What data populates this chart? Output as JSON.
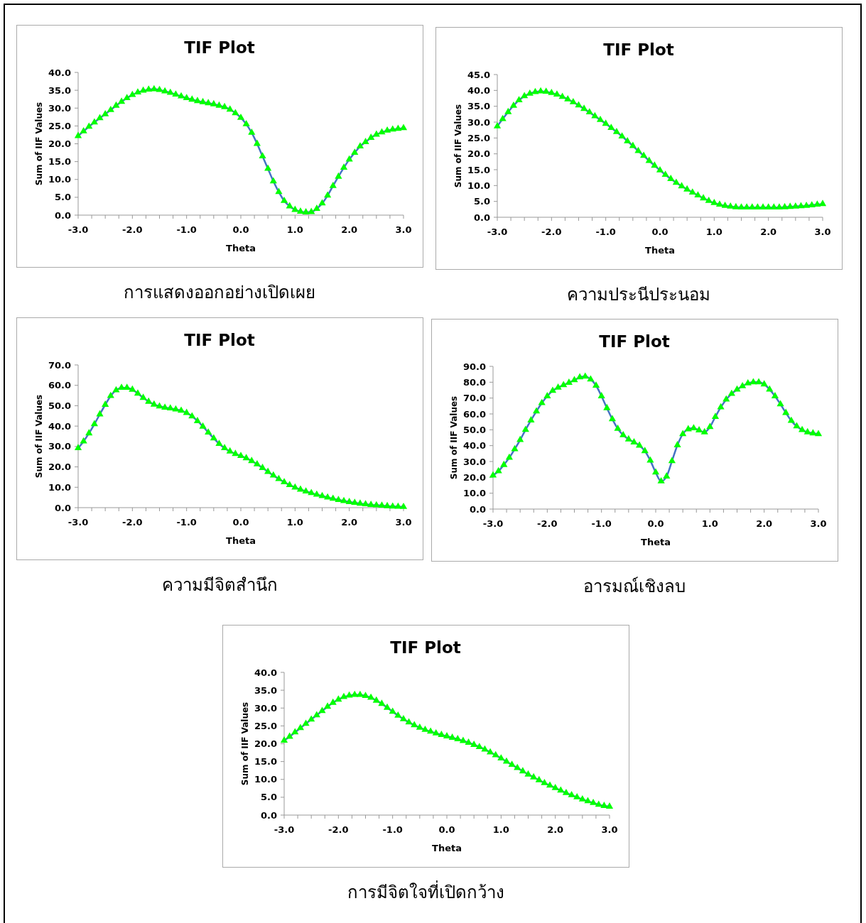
{
  "chart_data": [
    {
      "type": "line",
      "title": "TIF Plot",
      "xlabel": "Theta",
      "ylabel": "Sum of IIF Values",
      "annotations": [
        "การแสดงออกอย่างเปิดเผย"
      ],
      "xlim": [
        -3,
        3
      ],
      "ylim": [
        0,
        40
      ],
      "xticks": [
        {
          "value": -3,
          "label": "-3.0"
        },
        {
          "value": -2.75,
          "label": null
        },
        {
          "value": -2.5,
          "label": null
        },
        {
          "value": -2.25,
          "label": null
        },
        {
          "value": -2,
          "label": "-2.0"
        },
        {
          "value": -1.75,
          "label": null
        },
        {
          "value": -1.5,
          "label": null
        },
        {
          "value": -1.25,
          "label": null
        },
        {
          "value": -1,
          "label": "-1.0"
        },
        {
          "value": -0.75,
          "label": null
        },
        {
          "value": -0.5,
          "label": null
        },
        {
          "value": -0.25,
          "label": null
        },
        {
          "value": 0,
          "label": "0.0"
        },
        {
          "value": 0.25,
          "label": null
        },
        {
          "value": 0.5,
          "label": null
        },
        {
          "value": 0.75,
          "label": null
        },
        {
          "value": 1,
          "label": "1.0"
        },
        {
          "value": 1.25,
          "label": null
        },
        {
          "value": 1.5,
          "label": null
        },
        {
          "value": 1.75,
          "label": null
        },
        {
          "value": 2,
          "label": "2.0"
        },
        {
          "value": 2.25,
          "label": null
        },
        {
          "value": 2.5,
          "label": null
        },
        {
          "value": 2.75,
          "label": null
        },
        {
          "value": 3,
          "label": "3.0"
        }
      ],
      "yticks": [
        {
          "value": 0,
          "label": "0.0"
        },
        {
          "value": 5,
          "label": "5.0"
        },
        {
          "value": 10,
          "label": "10.0"
        },
        {
          "value": 15,
          "label": "15.0"
        },
        {
          "value": 20,
          "label": "20.0"
        },
        {
          "value": 25,
          "label": "25.0"
        },
        {
          "value": 30,
          "label": "30.0"
        },
        {
          "value": 35,
          "label": "35.0"
        },
        {
          "value": 40,
          "label": "40.0"
        }
      ],
      "x": [
        -3.0,
        -2.9,
        -2.8,
        -2.7,
        -2.6,
        -2.5,
        -2.4,
        -2.3,
        -2.2,
        -2.1,
        -2.0,
        -1.9,
        -1.8,
        -1.7,
        -1.6,
        -1.5,
        -1.4,
        -1.3,
        -1.2,
        -1.1,
        -1.0,
        -0.9,
        -0.8,
        -0.7,
        -0.6,
        -0.5,
        -0.4,
        -0.3,
        -0.2,
        -0.1,
        0.0,
        0.1,
        0.2,
        0.3,
        0.4,
        0.5,
        0.6,
        0.7,
        0.8,
        0.9,
        1.0,
        1.1,
        1.2,
        1.3,
        1.4,
        1.5,
        1.6,
        1.7,
        1.8,
        1.9,
        2.0,
        2.1,
        2.2,
        2.3,
        2.4,
        2.5,
        2.6,
        2.7,
        2.8,
        2.9,
        3.0
      ],
      "series": [
        {
          "type": "line",
          "color": "#4472c4",
          "marker": "none",
          "values": [
            22.2,
            23.5,
            24.8,
            26,
            27.2,
            28.3,
            29.5,
            30.7,
            31.8,
            32.8,
            33.7,
            34.4,
            34.9,
            35.2,
            35.3,
            35.1,
            34.7,
            34.3,
            33.8,
            33.3,
            32.8,
            32.4,
            32,
            31.7,
            31.4,
            31.1,
            30.7,
            30.3,
            29.6,
            28.6,
            27.3,
            25.5,
            23.1,
            20,
            16.5,
            13,
            9.5,
            6.5,
            4,
            2.5,
            1.5,
            1,
            0.8,
            0.9,
            1.8,
            3.3,
            5.5,
            8.2,
            10.8,
            13.3,
            15.6,
            17.5,
            19.3,
            20.5,
            21.7,
            22.6,
            23.2,
            23.7,
            24,
            24.2,
            24.4
          ]
        },
        {
          "type": "scatter",
          "color": "#00ff00",
          "marker": "triangle",
          "values": [
            22.2,
            23.5,
            24.8,
            26,
            27.2,
            28.3,
            29.5,
            30.7,
            31.8,
            32.8,
            33.7,
            34.4,
            34.9,
            35.2,
            35.3,
            35.1,
            34.7,
            34.3,
            33.8,
            33.3,
            32.8,
            32.4,
            32,
            31.7,
            31.4,
            31.1,
            30.7,
            30.3,
            29.6,
            28.6,
            27.3,
            25.5,
            23.1,
            20,
            16.5,
            13,
            9.5,
            6.5,
            4,
            2.5,
            1.5,
            1,
            0.8,
            0.9,
            1.8,
            3.3,
            5.5,
            8.2,
            10.8,
            13.3,
            15.6,
            17.5,
            19.3,
            20.5,
            21.7,
            22.6,
            23.2,
            23.7,
            24,
            24.2,
            24.4
          ]
        }
      ]
    },
    {
      "type": "line",
      "title": "TIF Plot",
      "xlabel": "Theta",
      "ylabel": "Sum of IIF Values",
      "annotations": [
        "ความประนีประนอม"
      ],
      "xlim": [
        -3,
        3
      ],
      "ylim": [
        0,
        45
      ],
      "xticks": [
        {
          "value": -3,
          "label": "-3.0"
        },
        {
          "value": -2.75,
          "label": null
        },
        {
          "value": -2.5,
          "label": null
        },
        {
          "value": -2.25,
          "label": null
        },
        {
          "value": -2,
          "label": "-2.0"
        },
        {
          "value": -1.75,
          "label": null
        },
        {
          "value": -1.5,
          "label": null
        },
        {
          "value": -1.25,
          "label": null
        },
        {
          "value": -1,
          "label": "-1.0"
        },
        {
          "value": -0.75,
          "label": null
        },
        {
          "value": -0.5,
          "label": null
        },
        {
          "value": -0.25,
          "label": null
        },
        {
          "value": 0,
          "label": "0.0"
        },
        {
          "value": 0.25,
          "label": null
        },
        {
          "value": 0.5,
          "label": null
        },
        {
          "value": 0.75,
          "label": null
        },
        {
          "value": 1,
          "label": "1.0"
        },
        {
          "value": 1.25,
          "label": null
        },
        {
          "value": 1.5,
          "label": null
        },
        {
          "value": 1.75,
          "label": null
        },
        {
          "value": 2,
          "label": "2.0"
        },
        {
          "value": 2.25,
          "label": null
        },
        {
          "value": 2.5,
          "label": null
        },
        {
          "value": 2.75,
          "label": null
        },
        {
          "value": 3,
          "label": "3.0"
        }
      ],
      "yticks": [
        {
          "value": 0,
          "label": "0.0"
        },
        {
          "value": 5,
          "label": "5.0"
        },
        {
          "value": 10,
          "label": "10.0"
        },
        {
          "value": 15,
          "label": "15.0"
        },
        {
          "value": 20,
          "label": "20.0"
        },
        {
          "value": 25,
          "label": "25.0"
        },
        {
          "value": 30,
          "label": "30.0"
        },
        {
          "value": 35,
          "label": "35.0"
        },
        {
          "value": 40,
          "label": "40.0"
        },
        {
          "value": 45,
          "label": "45.0"
        }
      ],
      "x": [
        -3.0,
        -2.9,
        -2.8,
        -2.7,
        -2.6,
        -2.5,
        -2.4,
        -2.3,
        -2.2,
        -2.1,
        -2.0,
        -1.9,
        -1.8,
        -1.7,
        -1.6,
        -1.5,
        -1.4,
        -1.3,
        -1.2,
        -1.1,
        -1.0,
        -0.9,
        -0.8,
        -0.7,
        -0.6,
        -0.5,
        -0.4,
        -0.3,
        -0.2,
        -0.1,
        0.0,
        0.1,
        0.2,
        0.3,
        0.4,
        0.5,
        0.6,
        0.7,
        0.8,
        0.9,
        1.0,
        1.1,
        1.2,
        1.3,
        1.4,
        1.5,
        1.6,
        1.7,
        1.8,
        1.9,
        2.0,
        2.1,
        2.2,
        2.3,
        2.4,
        2.5,
        2.6,
        2.7,
        2.8,
        2.9,
        3.0
      ],
      "series": [
        {
          "type": "line",
          "color": "#4472c4",
          "marker": "none",
          "values": [
            28.7,
            31,
            33.2,
            35.2,
            36.9,
            38.2,
            39,
            39.5,
            39.7,
            39.6,
            39.2,
            38.7,
            38,
            37.2,
            36.3,
            35.3,
            34.2,
            33.1,
            31.9,
            30.7,
            29.5,
            28.2,
            26.9,
            25.5,
            24,
            22.5,
            20.9,
            19.4,
            17.8,
            16.3,
            14.8,
            13.4,
            12.1,
            10.9,
            9.8,
            8.8,
            7.8,
            6.9,
            6,
            5.2,
            4.5,
            4,
            3.6,
            3.4,
            3.2,
            3.1,
            3.1,
            3.1,
            3.1,
            3.1,
            3.1,
            3.1,
            3.1,
            3.2,
            3.3,
            3.4,
            3.5,
            3.6,
            3.8,
            4,
            4.2
          ]
        },
        {
          "type": "scatter",
          "color": "#00ff00",
          "marker": "triangle",
          "values": [
            28.7,
            31,
            33.2,
            35.2,
            36.9,
            38.2,
            39,
            39.5,
            39.7,
            39.6,
            39.2,
            38.7,
            38,
            37.2,
            36.3,
            35.3,
            34.2,
            33.1,
            31.9,
            30.7,
            29.5,
            28.2,
            26.9,
            25.5,
            24,
            22.5,
            20.9,
            19.4,
            17.8,
            16.3,
            14.8,
            13.4,
            12.1,
            10.9,
            9.8,
            8.8,
            7.8,
            6.9,
            6,
            5.2,
            4.5,
            4,
            3.6,
            3.4,
            3.2,
            3.1,
            3.1,
            3.1,
            3.1,
            3.1,
            3.1,
            3.1,
            3.1,
            3.2,
            3.3,
            3.4,
            3.5,
            3.6,
            3.8,
            4,
            4.2
          ]
        }
      ]
    },
    {
      "type": "line",
      "title": "TIF Plot",
      "xlabel": "Theta",
      "ylabel": "Sum of IIF Values",
      "annotations": [
        "ความมีจิตสำนึก"
      ],
      "xlim": [
        -3,
        3
      ],
      "ylim": [
        0,
        70
      ],
      "xticks": [
        {
          "value": -3,
          "label": "-3.0"
        },
        {
          "value": -2.75,
          "label": null
        },
        {
          "value": -2.5,
          "label": null
        },
        {
          "value": -2.25,
          "label": null
        },
        {
          "value": -2,
          "label": "-2.0"
        },
        {
          "value": -1.75,
          "label": null
        },
        {
          "value": -1.5,
          "label": null
        },
        {
          "value": -1.25,
          "label": null
        },
        {
          "value": -1,
          "label": "-1.0"
        },
        {
          "value": -0.75,
          "label": null
        },
        {
          "value": -0.5,
          "label": null
        },
        {
          "value": -0.25,
          "label": null
        },
        {
          "value": 0,
          "label": "0.0"
        },
        {
          "value": 0.25,
          "label": null
        },
        {
          "value": 0.5,
          "label": null
        },
        {
          "value": 0.75,
          "label": null
        },
        {
          "value": 1,
          "label": "1.0"
        },
        {
          "value": 1.25,
          "label": null
        },
        {
          "value": 1.5,
          "label": null
        },
        {
          "value": 1.75,
          "label": null
        },
        {
          "value": 2,
          "label": "2.0"
        },
        {
          "value": 2.25,
          "label": null
        },
        {
          "value": 2.5,
          "label": null
        },
        {
          "value": 2.75,
          "label": null
        },
        {
          "value": 3,
          "label": "3.0"
        }
      ],
      "yticks": [
        {
          "value": 0,
          "label": "0.0"
        },
        {
          "value": 10,
          "label": "10.0"
        },
        {
          "value": 20,
          "label": "20.0"
        },
        {
          "value": 30,
          "label": "30.0"
        },
        {
          "value": 40,
          "label": "40.0"
        },
        {
          "value": 50,
          "label": "50.0"
        },
        {
          "value": 60,
          "label": "60.0"
        },
        {
          "value": 70,
          "label": "70.0"
        }
      ],
      "x": [
        -3.0,
        -2.9,
        -2.8,
        -2.7,
        -2.6,
        -2.5,
        -2.4,
        -2.3,
        -2.2,
        -2.1,
        -2.0,
        -1.9,
        -1.8,
        -1.7,
        -1.6,
        -1.5,
        -1.4,
        -1.3,
        -1.2,
        -1.1,
        -1.0,
        -0.9,
        -0.8,
        -0.7,
        -0.6,
        -0.5,
        -0.4,
        -0.3,
        -0.2,
        -0.1,
        0.0,
        0.1,
        0.2,
        0.3,
        0.4,
        0.5,
        0.6,
        0.7,
        0.8,
        0.9,
        1.0,
        1.1,
        1.2,
        1.3,
        1.4,
        1.5,
        1.6,
        1.7,
        1.8,
        1.9,
        2.0,
        2.1,
        2.2,
        2.3,
        2.4,
        2.5,
        2.6,
        2.7,
        2.8,
        2.9,
        3.0
      ],
      "series": [
        {
          "type": "line",
          "color": "#4472c4",
          "marker": "none",
          "values": [
            29.2,
            32.5,
            36.5,
            41,
            45.8,
            50.5,
            54.8,
            57.6,
            58.8,
            58.8,
            57.9,
            56,
            53.9,
            52,
            50.6,
            49.7,
            49.1,
            48.7,
            48.2,
            47.6,
            46.5,
            44.8,
            42.5,
            39.8,
            36.9,
            34,
            31.3,
            29.2,
            27.6,
            26.4,
            25.4,
            24.3,
            22.9,
            21.3,
            19.5,
            17.6,
            15.8,
            14.1,
            12.5,
            11.1,
            9.9,
            8.9,
            8,
            7.2,
            6.4,
            5.7,
            5,
            4.4,
            3.8,
            3.3,
            2.8,
            2.4,
            2,
            1.7,
            1.4,
            1.2,
            1,
            0.8,
            0.6,
            0.5,
            0.4
          ]
        },
        {
          "type": "scatter",
          "color": "#00ff00",
          "marker": "triangle",
          "values": [
            29.2,
            32.5,
            36.5,
            41,
            45.8,
            50.5,
            54.8,
            57.6,
            58.8,
            58.8,
            57.9,
            56,
            53.9,
            52,
            50.6,
            49.7,
            49.1,
            48.7,
            48.2,
            47.6,
            46.5,
            44.8,
            42.5,
            39.8,
            36.9,
            34,
            31.3,
            29.2,
            27.6,
            26.4,
            25.4,
            24.3,
            22.9,
            21.3,
            19.5,
            17.6,
            15.8,
            14.1,
            12.5,
            11.1,
            9.9,
            8.9,
            8,
            7.2,
            6.4,
            5.7,
            5,
            4.4,
            3.8,
            3.3,
            2.8,
            2.4,
            2,
            1.7,
            1.4,
            1.2,
            1,
            0.8,
            0.6,
            0.5,
            0.4
          ]
        }
      ]
    },
    {
      "type": "line",
      "title": "TIF Plot",
      "xlabel": "Theta",
      "ylabel": "Sum of IIF Values",
      "annotations": [
        "อารมณ์เชิงลบ"
      ],
      "xlim": [
        -3,
        3
      ],
      "ylim": [
        0,
        90
      ],
      "xticks": [
        {
          "value": -3,
          "label": "-3.0"
        },
        {
          "value": -2.75,
          "label": null
        },
        {
          "value": -2.5,
          "label": null
        },
        {
          "value": -2.25,
          "label": null
        },
        {
          "value": -2,
          "label": "-2.0"
        },
        {
          "value": -1.75,
          "label": null
        },
        {
          "value": -1.5,
          "label": null
        },
        {
          "value": -1.25,
          "label": null
        },
        {
          "value": -1,
          "label": "-1.0"
        },
        {
          "value": -0.75,
          "label": null
        },
        {
          "value": -0.5,
          "label": null
        },
        {
          "value": -0.25,
          "label": null
        },
        {
          "value": 0,
          "label": "0.0"
        },
        {
          "value": 0.25,
          "label": null
        },
        {
          "value": 0.5,
          "label": null
        },
        {
          "value": 0.75,
          "label": null
        },
        {
          "value": 1,
          "label": "1.0"
        },
        {
          "value": 1.25,
          "label": null
        },
        {
          "value": 1.5,
          "label": null
        },
        {
          "value": 1.75,
          "label": null
        },
        {
          "value": 2,
          "label": "2.0"
        },
        {
          "value": 2.25,
          "label": null
        },
        {
          "value": 2.5,
          "label": null
        },
        {
          "value": 2.75,
          "label": null
        },
        {
          "value": 3,
          "label": "3.0"
        }
      ],
      "yticks": [
        {
          "value": 0,
          "label": "0.0"
        },
        {
          "value": 10,
          "label": "10.0"
        },
        {
          "value": 20,
          "label": "20.0"
        },
        {
          "value": 30,
          "label": "30.0"
        },
        {
          "value": 40,
          "label": "40.0"
        },
        {
          "value": 50,
          "label": "50.0"
        },
        {
          "value": 60,
          "label": "60.0"
        },
        {
          "value": 70,
          "label": "70.0"
        },
        {
          "value": 80,
          "label": "80.0"
        },
        {
          "value": 90,
          "label": "90.0"
        }
      ],
      "x": [
        -3.0,
        -2.9,
        -2.8,
        -2.7,
        -2.6,
        -2.5,
        -2.4,
        -2.3,
        -2.2,
        -2.1,
        -2.0,
        -1.9,
        -1.8,
        -1.7,
        -1.6,
        -1.5,
        -1.4,
        -1.3,
        -1.2,
        -1.1,
        -1.0,
        -0.9,
        -0.8,
        -0.7,
        -0.6,
        -0.5,
        -0.4,
        -0.3,
        -0.2,
        -0.1,
        0.0,
        0.1,
        0.2,
        0.3,
        0.4,
        0.5,
        0.6,
        0.7,
        0.8,
        0.9,
        1.0,
        1.1,
        1.2,
        1.3,
        1.4,
        1.5,
        1.6,
        1.7,
        1.8,
        1.9,
        2.0,
        2.1,
        2.2,
        2.3,
        2.4,
        2.5,
        2.6,
        2.7,
        2.8,
        2.9,
        3.0
      ],
      "series": [
        {
          "type": "line",
          "color": "#4472c4",
          "marker": "none",
          "values": [
            21.2,
            23.9,
            27.9,
            32.4,
            37.8,
            43.6,
            50,
            56,
            61.6,
            66.9,
            71.2,
            74.6,
            76.6,
            78.2,
            79.7,
            81.3,
            83.1,
            83.6,
            81.8,
            77.9,
            71.2,
            63.7,
            56.7,
            50.7,
            46.6,
            44,
            42.1,
            40.1,
            36.6,
            30.6,
            23.1,
            17.5,
            20.6,
            30.3,
            40.3,
            47.3,
            50.4,
            51,
            49.7,
            48.5,
            51.8,
            58.2,
            64.2,
            69.1,
            72.7,
            75.4,
            77.5,
            79.3,
            80,
            80,
            78.7,
            75.4,
            71.2,
            66.1,
            60.7,
            55.7,
            52.2,
            49.9,
            48.5,
            47.8,
            47.3
          ]
        },
        {
          "type": "scatter",
          "color": "#00ff00",
          "marker": "triangle",
          "values": [
            21.2,
            23.9,
            27.9,
            32.4,
            37.8,
            43.6,
            50,
            56,
            61.6,
            66.9,
            71.2,
            74.6,
            76.6,
            78.2,
            79.7,
            81.3,
            83.1,
            83.6,
            81.8,
            77.9,
            71.2,
            63.7,
            56.7,
            50.7,
            46.6,
            44,
            42.1,
            40.1,
            36.6,
            30.6,
            23.1,
            17.5,
            20.6,
            30.3,
            40.3,
            47.3,
            50.4,
            51,
            49.7,
            48.5,
            51.8,
            58.2,
            64.2,
            69.1,
            72.7,
            75.4,
            77.5,
            79.3,
            80,
            80,
            78.7,
            75.4,
            71.2,
            66.1,
            60.7,
            55.7,
            52.2,
            49.9,
            48.5,
            47.8,
            47.3
          ]
        }
      ]
    },
    {
      "type": "line",
      "title": "TIF Plot",
      "xlabel": "Theta",
      "ylabel": "Sum of IIF Values",
      "annotations": [
        "การมีจิตใจที่เปิดกว้าง"
      ],
      "xlim": [
        -3,
        3
      ],
      "ylim": [
        0,
        40
      ],
      "xticks": [
        {
          "value": -3,
          "label": "-3.0"
        },
        {
          "value": -2.75,
          "label": null
        },
        {
          "value": -2.5,
          "label": null
        },
        {
          "value": -2.25,
          "label": null
        },
        {
          "value": -2,
          "label": "-2.0"
        },
        {
          "value": -1.75,
          "label": null
        },
        {
          "value": -1.5,
          "label": null
        },
        {
          "value": -1.25,
          "label": null
        },
        {
          "value": -1,
          "label": "-1.0"
        },
        {
          "value": -0.75,
          "label": null
        },
        {
          "value": -0.5,
          "label": null
        },
        {
          "value": -0.25,
          "label": null
        },
        {
          "value": 0,
          "label": "0.0"
        },
        {
          "value": 0.25,
          "label": null
        },
        {
          "value": 0.5,
          "label": null
        },
        {
          "value": 0.75,
          "label": null
        },
        {
          "value": 1,
          "label": "1.0"
        },
        {
          "value": 1.25,
          "label": null
        },
        {
          "value": 1.5,
          "label": null
        },
        {
          "value": 1.75,
          "label": null
        },
        {
          "value": 2,
          "label": "2.0"
        },
        {
          "value": 2.25,
          "label": null
        },
        {
          "value": 2.5,
          "label": null
        },
        {
          "value": 2.75,
          "label": null
        },
        {
          "value": 3,
          "label": "3.0"
        }
      ],
      "yticks": [
        {
          "value": 0,
          "label": "0.0"
        },
        {
          "value": 5,
          "label": "5.0"
        },
        {
          "value": 10,
          "label": "10.0"
        },
        {
          "value": 15,
          "label": "15.0"
        },
        {
          "value": 20,
          "label": "20.0"
        },
        {
          "value": 25,
          "label": "25.0"
        },
        {
          "value": 30,
          "label": "30.0"
        },
        {
          "value": 35,
          "label": "35.0"
        },
        {
          "value": 40,
          "label": "40.0"
        }
      ],
      "x": [
        -3.0,
        -2.9,
        -2.8,
        -2.7,
        -2.6,
        -2.5,
        -2.4,
        -2.3,
        -2.2,
        -2.1,
        -2.0,
        -1.9,
        -1.8,
        -1.7,
        -1.6,
        -1.5,
        -1.4,
        -1.3,
        -1.2,
        -1.1,
        -1.0,
        -0.9,
        -0.8,
        -0.7,
        -0.6,
        -0.5,
        -0.4,
        -0.3,
        -0.2,
        -0.1,
        0.0,
        0.1,
        0.2,
        0.3,
        0.4,
        0.5,
        0.6,
        0.7,
        0.8,
        0.9,
        1.0,
        1.1,
        1.2,
        1.3,
        1.4,
        1.5,
        1.6,
        1.7,
        1.8,
        1.9,
        2.0,
        2.1,
        2.2,
        2.3,
        2.4,
        2.5,
        2.6,
        2.7,
        2.8,
        2.9,
        3.0
      ],
      "series": [
        {
          "type": "line",
          "color": "#4472c4",
          "marker": "none",
          "values": [
            20.9,
            22,
            23.2,
            24.4,
            25.6,
            26.8,
            28,
            29.2,
            30.4,
            31.5,
            32.4,
            33.1,
            33.5,
            33.7,
            33.7,
            33.4,
            32.9,
            32.1,
            31.2,
            30.1,
            29,
            27.9,
            26.9,
            26,
            25.2,
            24.5,
            23.9,
            23.4,
            22.9,
            22.5,
            22.1,
            21.7,
            21.3,
            20.8,
            20.3,
            19.7,
            19.1,
            18.4,
            17.6,
            16.8,
            15.9,
            15,
            14.1,
            13.2,
            12.3,
            11.4,
            10.6,
            9.8,
            9,
            8.3,
            7.6,
            6.9,
            6.2,
            5.6,
            5,
            4.4,
            3.9,
            3.4,
            2.9,
            2.6,
            2.4
          ]
        },
        {
          "type": "scatter",
          "color": "#00ff00",
          "marker": "triangle",
          "values": [
            20.9,
            22,
            23.2,
            24.4,
            25.6,
            26.8,
            28,
            29.2,
            30.4,
            31.5,
            32.4,
            33.1,
            33.5,
            33.7,
            33.7,
            33.4,
            32.9,
            32.1,
            31.2,
            30.1,
            29,
            27.9,
            26.9,
            26,
            25.2,
            24.5,
            23.9,
            23.4,
            22.9,
            22.5,
            22.1,
            21.7,
            21.3,
            20.8,
            20.3,
            19.7,
            19.1,
            18.4,
            17.6,
            16.8,
            15.9,
            15,
            14.1,
            13.2,
            12.3,
            11.4,
            10.6,
            9.8,
            9,
            8.3,
            7.6,
            6.9,
            6.2,
            5.6,
            5,
            4.4,
            3.9,
            3.4,
            2.9,
            2.6,
            2.4
          ]
        }
      ]
    }
  ]
}
